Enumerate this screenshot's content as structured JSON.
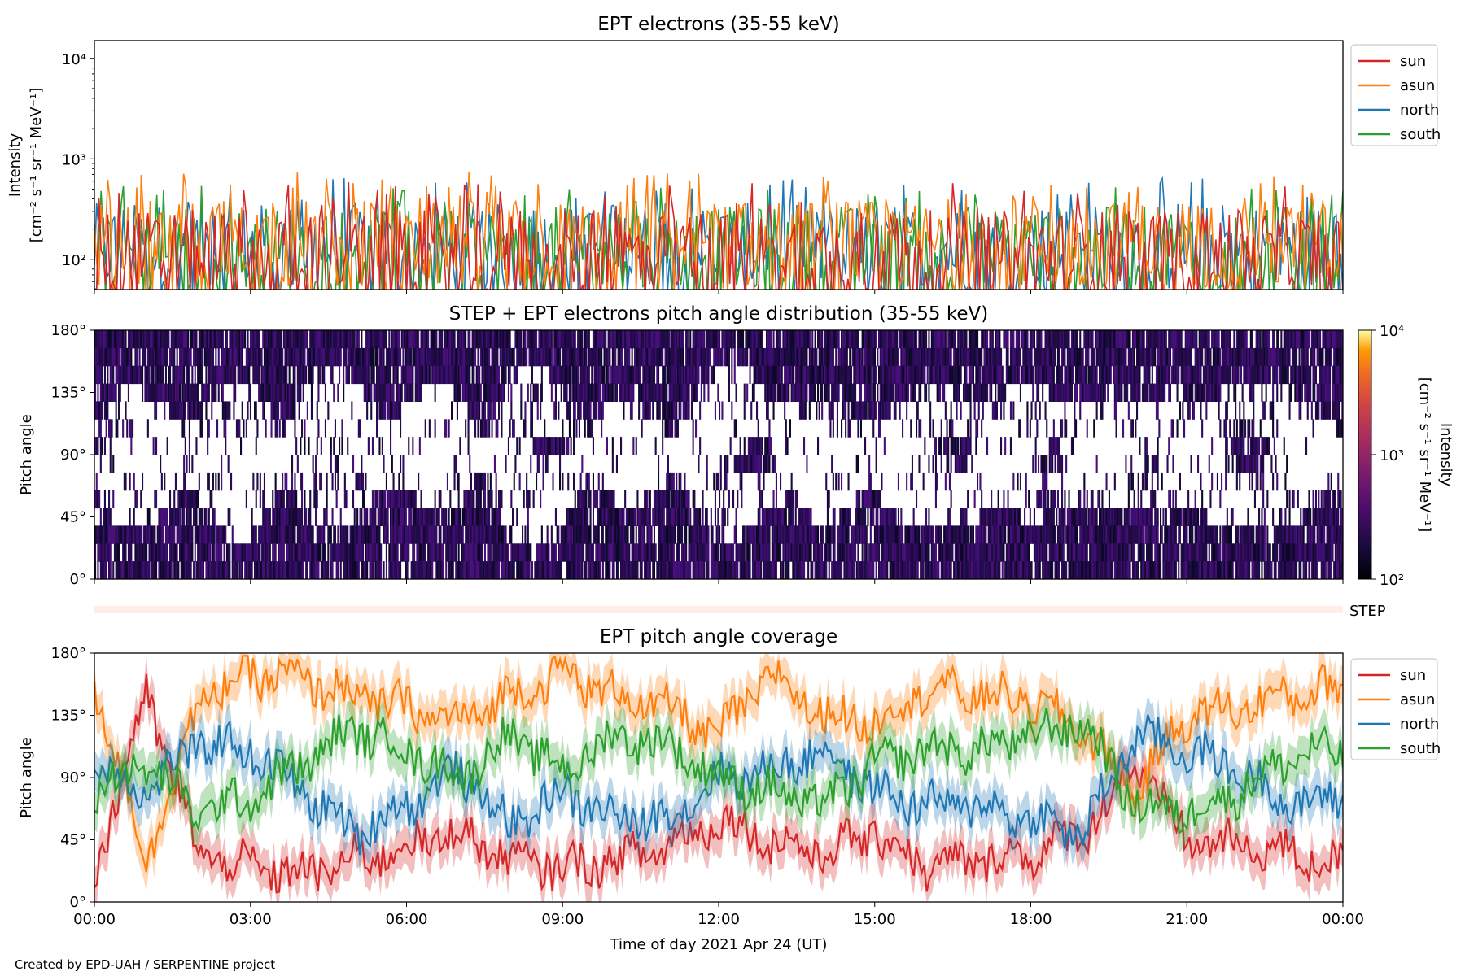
{
  "footer": "Created by EPD-UAH / SERPENTINE project",
  "colors": {
    "sun": "#d62728",
    "asun": "#ff7f0e",
    "north": "#1f77b4",
    "south": "#2ca02c"
  },
  "chart_data": [
    {
      "type": "line",
      "title": "EPT electrons (35-55 keV)",
      "ylabel": "Intensity",
      "ylabel_units": "[cm⁻² s⁻¹ sr⁻¹ MeV⁻¹]",
      "yscale": "log",
      "ylim": [
        50,
        15000
      ],
      "yticks": [
        {
          "value": 100,
          "label": "10²"
        },
        {
          "value": 1000,
          "label": "10³"
        },
        {
          "value": 10000,
          "label": "10⁴"
        }
      ],
      "xlim_hours": [
        0,
        24
      ],
      "legend_position": "upper right, outside plot",
      "series": [
        {
          "name": "sun",
          "color": "#d62728",
          "median": 110,
          "typical_peak": 300,
          "max": 600
        },
        {
          "name": "asun",
          "color": "#ff7f0e",
          "median": 140,
          "typical_peak": 400,
          "max": 750
        },
        {
          "name": "north",
          "color": "#1f77b4",
          "median": 130,
          "typical_peak": 380,
          "max": 650
        },
        {
          "name": "south",
          "color": "#2ca02c",
          "median": 120,
          "typical_peak": 350,
          "max": 550
        }
      ]
    },
    {
      "type": "heatmap",
      "title": "STEP + EPT electrons pitch angle distribution (35-55 keV)",
      "ylabel": "Pitch angle",
      "ylim": [
        0,
        180
      ],
      "yticks": [
        "0°",
        "45°",
        "90°",
        "135°",
        "180°"
      ],
      "xlim_hours": [
        0,
        24
      ],
      "colorbar": {
        "label": "Intensity",
        "units": "[cm⁻² s⁻¹ sr⁻¹ MeV⁻¹]",
        "scale": "log",
        "range": [
          100,
          10000
        ],
        "ticks": [
          "10²",
          "10³",
          "10⁴"
        ],
        "colormap": "inferno"
      },
      "dominant_level": 150
    },
    {
      "type": "band",
      "label": "STEP",
      "xlim_hours": [
        0,
        24
      ]
    },
    {
      "type": "line",
      "title": "EPT pitch angle coverage",
      "ylabel": "Pitch angle",
      "xlabel": "Time of day 2021 Apr 24 (UT)",
      "ylim": [
        0,
        180
      ],
      "yticks": [
        "0°",
        "45°",
        "90°",
        "135°",
        "180°"
      ],
      "xticks": [
        "00:00",
        "03:00",
        "06:00",
        "09:00",
        "12:00",
        "15:00",
        "18:00",
        "21:00",
        "00:00"
      ],
      "xlim_hours": [
        0,
        24
      ],
      "legend_position": "upper right, outside plot",
      "series": [
        {
          "name": "sun",
          "color": "#d62728",
          "hours": [
            0,
            1,
            2,
            3,
            4,
            5,
            6,
            7,
            8,
            9,
            10,
            11,
            12,
            13,
            14,
            15,
            16,
            17,
            18,
            19,
            20,
            21,
            22,
            23,
            24
          ],
          "values": [
            20,
            150,
            35,
            25,
            20,
            30,
            40,
            50,
            30,
            25,
            30,
            40,
            60,
            45,
            35,
            50,
            25,
            30,
            35,
            50,
            100,
            45,
            40,
            35,
            25
          ]
        },
        {
          "name": "asun",
          "color": "#ff7f0e",
          "hours": [
            0,
            1,
            2,
            3,
            4,
            5,
            6,
            7,
            8,
            9,
            10,
            11,
            12,
            13,
            14,
            15,
            16,
            17,
            18,
            19,
            20,
            21,
            22,
            23,
            24
          ],
          "values": [
            160,
            30,
            145,
            165,
            160,
            150,
            140,
            130,
            150,
            165,
            150,
            140,
            120,
            165,
            135,
            130,
            155,
            150,
            145,
            125,
            80,
            135,
            140,
            150,
            155
          ]
        },
        {
          "name": "north",
          "color": "#1f77b4",
          "hours": [
            0,
            1,
            2,
            3,
            4,
            5,
            6,
            7,
            8,
            9,
            10,
            11,
            12,
            13,
            14,
            15,
            16,
            17,
            18,
            19,
            20,
            21,
            22,
            23,
            24
          ],
          "values": [
            100,
            80,
            115,
            110,
            80,
            50,
            70,
            95,
            55,
            80,
            60,
            60,
            90,
            95,
            110,
            80,
            70,
            70,
            60,
            50,
            120,
            110,
            95,
            70,
            75
          ]
        },
        {
          "name": "south",
          "color": "#2ca02c",
          "hours": [
            0,
            1,
            2,
            3,
            4,
            5,
            6,
            7,
            8,
            9,
            10,
            11,
            12,
            13,
            14,
            15,
            16,
            17,
            18,
            19,
            20,
            21,
            22,
            23,
            24
          ],
          "values": [
            80,
            100,
            65,
            75,
            100,
            125,
            110,
            90,
            120,
            95,
            120,
            115,
            90,
            80,
            70,
            100,
            110,
            110,
            120,
            130,
            70,
            65,
            80,
            105,
            110
          ]
        }
      ]
    }
  ]
}
